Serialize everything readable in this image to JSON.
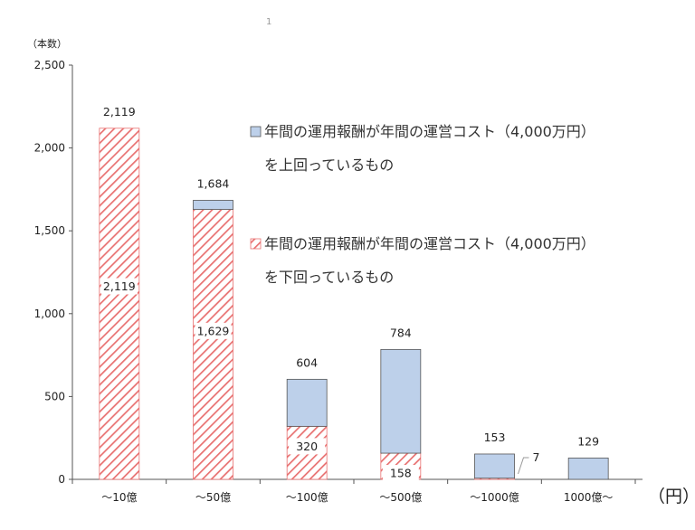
{
  "chart_data": {
    "type": "bar",
    "stacked": true,
    "title": "",
    "ylabel": "（本数）",
    "xunit": "（円）",
    "stray_mark": "1",
    "ylim": [
      0,
      2500
    ],
    "yticks": [
      0,
      500,
      1000,
      1500,
      2000,
      2500
    ],
    "ytick_labels": [
      "0",
      "500",
      "1,000",
      "1,500",
      "2,000",
      "2,500"
    ],
    "categories": [
      "～10億",
      "～50億",
      "～100億",
      "～500億",
      "～1000億",
      "1000億～"
    ],
    "series": [
      {
        "key": "below",
        "legend_line1": "年間の運用報酬が年間の運営コスト（4,000万円）",
        "legend_line2": "を下回っているもの",
        "pattern": "hatched",
        "color": "#e87070",
        "values": [
          2119,
          1629,
          320,
          158,
          7,
          0
        ],
        "labels": [
          "2,119",
          "1,629",
          "320",
          "158",
          "7",
          ""
        ]
      },
      {
        "key": "above",
        "legend_line1": "年間の運用報酬が年間の運営コスト（4,000万円）",
        "legend_line2": "を上回っているもの",
        "pattern": "solid",
        "color": "#bdd0ea",
        "values": [
          0,
          55,
          284,
          626,
          146,
          129
        ]
      }
    ],
    "totals": [
      2119,
      1684,
      604,
      784,
      153,
      129
    ],
    "total_labels": [
      "2,119",
      "1,684",
      "604",
      "784",
      "153",
      "129"
    ],
    "legend_position": "top-right",
    "grid": false
  }
}
